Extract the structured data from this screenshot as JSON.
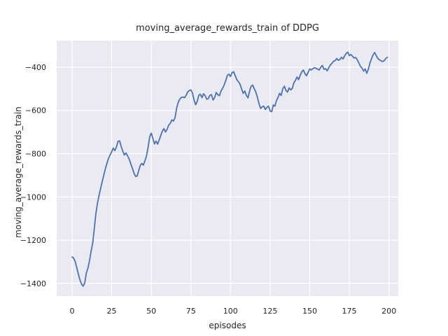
{
  "style": {
    "figure_bg": "#ffffff",
    "axes_bg": "#eaeaf2",
    "grid_color": "#ffffff",
    "line_color": "#4c72b0",
    "text_color": "#262626"
  },
  "chart_data": {
    "type": "line",
    "title": "moving_average_rewards_train of DDPG",
    "xlabel": "episodes",
    "ylabel": "moving_average_rewards_train",
    "x_ticks": [
      0,
      25,
      50,
      75,
      100,
      125,
      150,
      175,
      200
    ],
    "x_tick_labels": [
      "0",
      "25",
      "50",
      "75",
      "100",
      "125",
      "150",
      "175",
      "200"
    ],
    "y_ticks": [
      -400,
      -600,
      -800,
      -1000,
      -1200,
      -1400
    ],
    "y_tick_labels": [
      "−400",
      "−600",
      "−800",
      "−1000",
      "−1200",
      "−1400"
    ],
    "xlim": [
      -9.7,
      205.9
    ],
    "ylim": [
      -1459,
      -277
    ],
    "grid": true,
    "legend": "none",
    "series": [
      {
        "name": "moving_average_rewards_train",
        "x_start": 0,
        "x_step": 1,
        "values": [
          -1278,
          -1283,
          -1300,
          -1328,
          -1358,
          -1385,
          -1403,
          -1413,
          -1398,
          -1352,
          -1330,
          -1295,
          -1252,
          -1215,
          -1150,
          -1080,
          -1030,
          -995,
          -962,
          -930,
          -900,
          -870,
          -845,
          -822,
          -806,
          -792,
          -774,
          -786,
          -770,
          -743,
          -741,
          -767,
          -788,
          -806,
          -797,
          -810,
          -824,
          -846,
          -866,
          -888,
          -905,
          -904,
          -880,
          -856,
          -845,
          -853,
          -832,
          -810,
          -770,
          -722,
          -705,
          -730,
          -755,
          -742,
          -756,
          -737,
          -716,
          -695,
          -684,
          -700,
          -687,
          -668,
          -660,
          -644,
          -649,
          -633,
          -590,
          -563,
          -547,
          -540,
          -538,
          -541,
          -530,
          -514,
          -508,
          -505,
          -520,
          -552,
          -574,
          -557,
          -530,
          -525,
          -541,
          -523,
          -532,
          -548,
          -545,
          -530,
          -527,
          -552,
          -540,
          -517,
          -527,
          -532,
          -510,
          -498,
          -483,
          -462,
          -438,
          -432,
          -443,
          -425,
          -421,
          -440,
          -458,
          -467,
          -478,
          -500,
          -521,
          -510,
          -530,
          -542,
          -512,
          -488,
          -483,
          -500,
          -515,
          -540,
          -569,
          -591,
          -583,
          -580,
          -596,
          -585,
          -580,
          -602,
          -606,
          -575,
          -580,
          -555,
          -540,
          -521,
          -531,
          -499,
          -488,
          -508,
          -515,
          -496,
          -505,
          -498,
          -472,
          -461,
          -445,
          -458,
          -437,
          -421,
          -413,
          -430,
          -440,
          -424,
          -408,
          -413,
          -407,
          -402,
          -406,
          -409,
          -413,
          -400,
          -392,
          -410,
          -407,
          -417,
          -403,
          -390,
          -382,
          -373,
          -370,
          -360,
          -368,
          -365,
          -354,
          -362,
          -348,
          -337,
          -330,
          -347,
          -341,
          -349,
          -358,
          -355,
          -366,
          -380,
          -396,
          -404,
          -418,
          -408,
          -428,
          -410,
          -380,
          -362,
          -342,
          -332,
          -347,
          -360,
          -366,
          -370,
          -374,
          -370,
          -360,
          -354
        ]
      }
    ]
  }
}
